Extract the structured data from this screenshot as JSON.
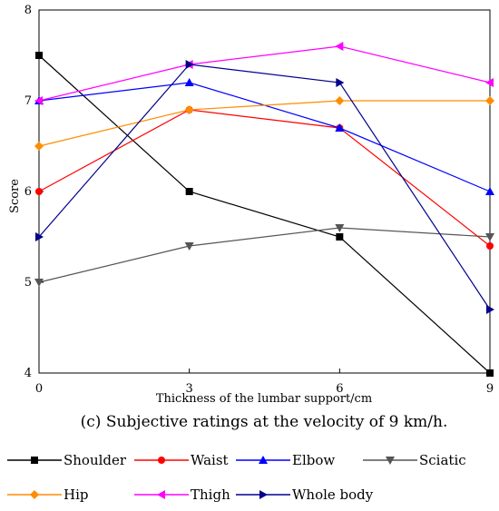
{
  "chart_data": {
    "type": "line",
    "title": "",
    "caption": "(c) Subjective ratings at the velocity of 9 km/h.",
    "xlabel": "Thickness of the lumbar support/cm",
    "ylabel": "Score",
    "x": [
      0,
      3,
      6,
      9
    ],
    "xticks": [
      "0",
      "3",
      "6",
      "9"
    ],
    "yticks": [
      "4",
      "5",
      "6",
      "7",
      "8"
    ],
    "xlim": [
      0,
      9
    ],
    "ylim": [
      4,
      8
    ],
    "grid": false,
    "legend_position": "bottom",
    "series": [
      {
        "name": "Shoulder",
        "color": "#000000",
        "marker": "square",
        "values": [
          7.5,
          6.0,
          5.5,
          4.0
        ]
      },
      {
        "name": "Waist",
        "color": "#ff0000",
        "marker": "circle",
        "values": [
          6.0,
          6.9,
          6.7,
          5.4
        ]
      },
      {
        "name": "Elbow",
        "color": "#0000ff",
        "marker": "triangle-up",
        "values": [
          7.0,
          7.2,
          6.7,
          6.0
        ]
      },
      {
        "name": "Sciatic",
        "color": "#555555",
        "marker": "triangle-down",
        "values": [
          5.0,
          5.4,
          5.6,
          5.5
        ]
      },
      {
        "name": "Hip",
        "color": "#ff8c00",
        "marker": "diamond",
        "values": [
          6.5,
          6.9,
          7.0,
          7.0
        ]
      },
      {
        "name": "Thigh",
        "color": "#ff00ff",
        "marker": "triangle-left",
        "values": [
          7.0,
          7.4,
          7.6,
          7.2
        ]
      },
      {
        "name": "Whole body",
        "color": "#00008b",
        "marker": "triangle-right",
        "values": [
          5.5,
          7.4,
          7.2,
          4.7
        ]
      }
    ]
  }
}
